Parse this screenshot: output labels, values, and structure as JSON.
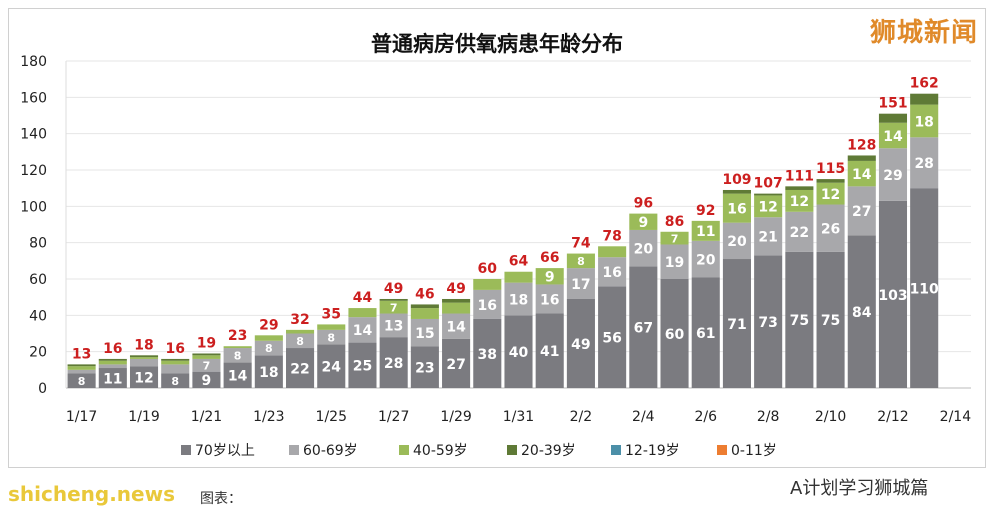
{
  "watermark": "狮城新闻",
  "site_mark": "shicheng.news",
  "account": "A计划学习狮城篇",
  "caption": "图表：",
  "colors": {
    "70+": "#7b7b80",
    "60-69": "#a8a8ab",
    "40-59": "#9bbb59",
    "20-39": "#5f7a36",
    "12-19": "#4b8fa8",
    "0-11": "#ed7d31",
    "total": "#cc1f1f"
  },
  "chart_data": {
    "type": "bar",
    "stacked": true,
    "title": "普通病房供氧病患年龄分布",
    "xlabel": "",
    "ylabel": "",
    "ylim": [
      0,
      180
    ],
    "yticks": [
      0,
      20,
      40,
      60,
      80,
      100,
      120,
      140,
      160,
      180
    ],
    "grid": true,
    "legend_position": "bottom",
    "categories": [
      "1/17",
      "1/18",
      "1/19",
      "1/20",
      "1/21",
      "1/22",
      "1/23",
      "1/24",
      "1/25",
      "1/26",
      "1/27",
      "1/28",
      "1/29",
      "1/30",
      "1/31",
      "2/1",
      "2/2",
      "2/3",
      "2/4",
      "2/5",
      "2/6",
      "2/7",
      "2/8",
      "2/9",
      "2/10",
      "2/11",
      "2/12",
      "2/13",
      "2/14"
    ],
    "xtick_labels": [
      "1/17",
      "1/19",
      "1/21",
      "1/23",
      "1/25",
      "1/27",
      "1/29",
      "1/31",
      "2/2",
      "2/4",
      "2/6",
      "2/8",
      "2/10",
      "2/12",
      "2/14"
    ],
    "series": [
      {
        "name": "70岁以上",
        "key": "70+",
        "values": [
          8,
          11,
          12,
          8,
          9,
          14,
          18,
          22,
          24,
          25,
          28,
          23,
          27,
          38,
          40,
          41,
          49,
          56,
          67,
          60,
          61,
          71,
          73,
          75,
          75,
          84,
          103,
          110,
          0
        ]
      },
      {
        "name": "60-69岁",
        "key": "60-69",
        "values": [
          2,
          2,
          4,
          5,
          7,
          8,
          8,
          8,
          8,
          14,
          13,
          15,
          14,
          16,
          18,
          16,
          17,
          16,
          20,
          19,
          20,
          20,
          21,
          22,
          26,
          27,
          29,
          28,
          0
        ]
      },
      {
        "name": "40-59岁",
        "key": "40-59",
        "values": [
          2,
          2,
          1,
          2,
          2,
          1,
          3,
          2,
          3,
          5,
          7,
          6,
          6,
          6,
          6,
          9,
          8,
          6,
          9,
          7,
          11,
          16,
          12,
          12,
          12,
          14,
          14,
          18,
          0
        ]
      },
      {
        "name": "20-39岁",
        "key": "20-39",
        "values": [
          1,
          1,
          1,
          1,
          1,
          0,
          0,
          0,
          0,
          0,
          1,
          2,
          2,
          0,
          0,
          0,
          0,
          0,
          0,
          0,
          0,
          2,
          1,
          2,
          2,
          3,
          5,
          6,
          0
        ]
      },
      {
        "name": "12-19岁",
        "key": "12-19",
        "values": [
          0,
          0,
          0,
          0,
          0,
          0,
          0,
          0,
          0,
          0,
          0,
          0,
          0,
          0,
          0,
          0,
          0,
          0,
          0,
          0,
          0,
          0,
          0,
          0,
          0,
          0,
          0,
          0,
          0
        ]
      },
      {
        "name": "0-11岁",
        "key": "0-11",
        "values": [
          0,
          0,
          0,
          0,
          0,
          0,
          0,
          0,
          0,
          0,
          0,
          0,
          0,
          0,
          0,
          0,
          0,
          0,
          0,
          0,
          0,
          0,
          0,
          0,
          0,
          0,
          0,
          0,
          0
        ]
      }
    ],
    "totals": [
      13,
      16,
      18,
      16,
      19,
      23,
      29,
      32,
      35,
      44,
      49,
      46,
      49,
      60,
      64,
      66,
      74,
      78,
      96,
      86,
      92,
      109,
      107,
      111,
      115,
      128,
      151,
      162,
      null
    ]
  }
}
